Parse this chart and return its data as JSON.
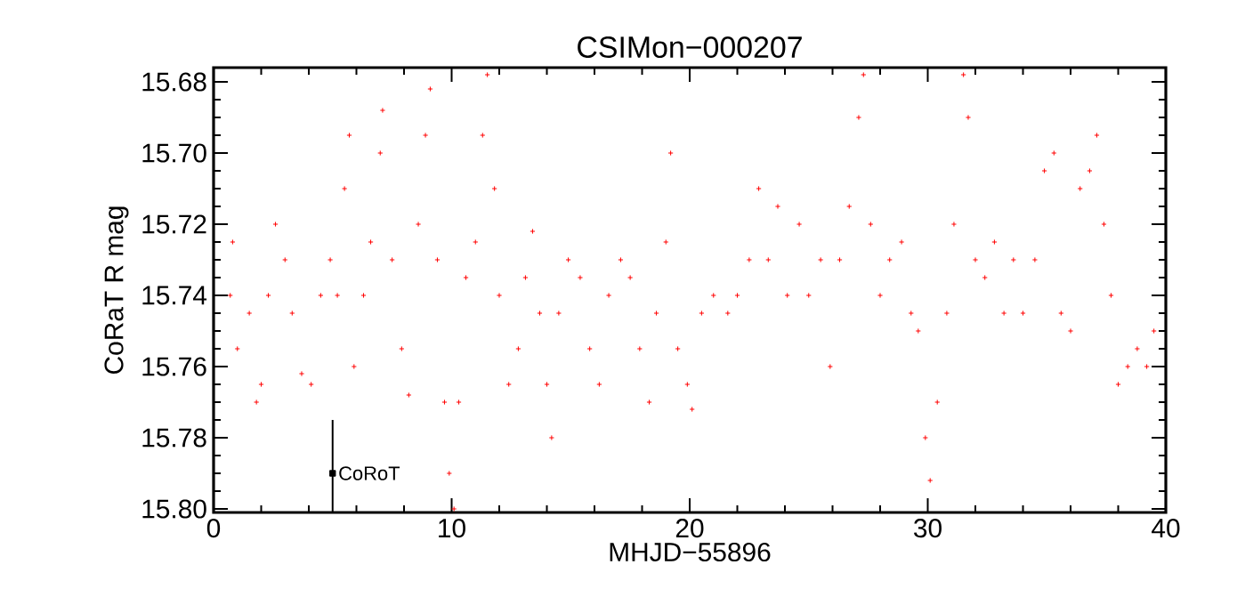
{
  "chart_data": {
    "type": "scatter",
    "title": "CSIMon−000207",
    "xlabel": "MHJD−55896",
    "ylabel": "CoRaT R mag",
    "xlim": [
      0,
      40
    ],
    "ylim": [
      15.801,
      15.676
    ],
    "xticks": [
      0,
      10,
      20,
      30,
      40
    ],
    "yticks": [
      {
        "value": 15.68,
        "label": "15.68"
      },
      {
        "value": 15.7,
        "label": "15.70"
      },
      {
        "value": 15.72,
        "label": "15.72"
      },
      {
        "value": 15.74,
        "label": "15.74"
      },
      {
        "value": 15.76,
        "label": "15.76"
      },
      {
        "value": 15.78,
        "label": "15.78"
      },
      {
        "value": 15.8,
        "label": "15.80"
      }
    ],
    "marker": "cross",
    "series": [
      {
        "color": "#ff0000",
        "x": [
          0.7,
          0.8,
          1.0,
          1.5,
          1.8,
          2.0,
          2.3,
          2.6,
          3.0,
          3.3,
          3.7,
          4.1,
          4.5,
          4.9,
          5.2,
          5.5,
          5.7,
          5.9,
          6.3,
          6.6,
          7.0,
          7.1,
          7.5,
          7.9,
          8.2,
          8.6,
          8.9,
          9.1,
          9.4,
          9.7,
          9.9,
          10.1,
          10.3,
          10.6,
          11.0,
          11.3,
          11.5,
          11.8,
          12.0,
          12.4,
          12.8,
          13.1,
          13.4,
          13.7,
          14.0,
          14.2,
          14.5,
          14.9,
          15.4,
          15.8,
          16.2,
          16.6,
          17.1,
          17.5,
          17.9,
          18.3,
          18.6,
          19.0,
          19.2,
          19.5,
          19.9,
          20.1,
          20.5,
          21.0,
          21.6,
          22.0,
          22.5,
          22.9,
          23.3,
          23.7,
          24.1,
          24.6,
          25.0,
          25.5,
          25.9,
          26.3,
          26.7,
          27.1,
          27.3,
          27.6,
          28.0,
          28.4,
          28.9,
          29.3,
          29.6,
          29.9,
          30.1,
          30.4,
          30.8,
          31.1,
          31.5,
          31.7,
          32.0,
          32.4,
          32.8,
          33.2,
          33.6,
          34.0,
          34.5,
          34.9,
          35.3,
          35.6,
          36.0,
          36.4,
          36.8,
          37.1,
          37.4,
          37.7,
          38.0,
          38.4,
          38.8,
          39.2,
          39.5
        ],
        "values": [
          15.74,
          15.725,
          15.755,
          15.745,
          15.77,
          15.765,
          15.74,
          15.72,
          15.73,
          15.745,
          15.762,
          15.765,
          15.74,
          15.73,
          15.74,
          15.71,
          15.695,
          15.76,
          15.74,
          15.725,
          15.7,
          15.688,
          15.73,
          15.755,
          15.768,
          15.72,
          15.695,
          15.682,
          15.73,
          15.77,
          15.79,
          15.8,
          15.77,
          15.735,
          15.725,
          15.695,
          15.678,
          15.71,
          15.74,
          15.765,
          15.755,
          15.735,
          15.722,
          15.745,
          15.765,
          15.78,
          15.745,
          15.73,
          15.735,
          15.755,
          15.765,
          15.74,
          15.73,
          15.735,
          15.755,
          15.77,
          15.745,
          15.725,
          15.7,
          15.755,
          15.765,
          15.772,
          15.745,
          15.74,
          15.745,
          15.74,
          15.73,
          15.71,
          15.73,
          15.715,
          15.74,
          15.72,
          15.74,
          15.73,
          15.76,
          15.73,
          15.715,
          15.69,
          15.678,
          15.72,
          15.74,
          15.73,
          15.725,
          15.745,
          15.75,
          15.78,
          15.792,
          15.77,
          15.745,
          15.72,
          15.678,
          15.69,
          15.73,
          15.735,
          15.725,
          15.745,
          15.73,
          15.745,
          15.73,
          15.705,
          15.7,
          15.745,
          15.75,
          15.71,
          15.705,
          15.695,
          15.72,
          15.74,
          15.765,
          15.76,
          15.755,
          15.76,
          15.75
        ]
      },
      {
        "name": "CoRoT",
        "color": "#000000",
        "marker": "square",
        "x": [
          5
        ],
        "values": [
          15.79
        ],
        "errors": [
          [
            15.775,
            15.801
          ]
        ]
      }
    ]
  }
}
